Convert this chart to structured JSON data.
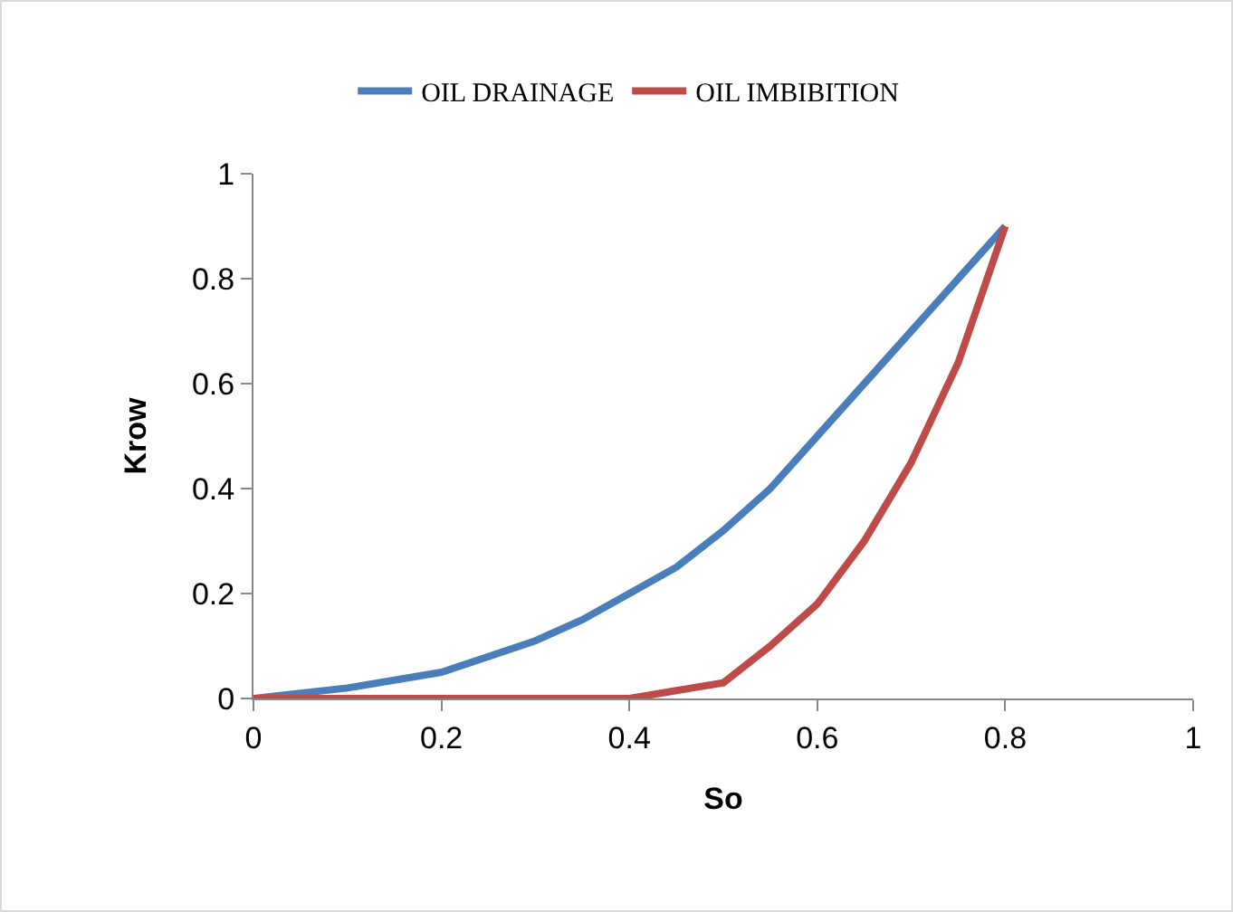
{
  "chart_data": {
    "type": "line",
    "xlabel": "So",
    "ylabel": "Krow",
    "x": [
      0,
      0.1,
      0.2,
      0.3,
      0.35,
      0.4,
      0.45,
      0.5,
      0.55,
      0.6,
      0.65,
      0.7,
      0.75,
      0.8
    ],
    "series": [
      {
        "name": "OIL DRAINAGE",
        "color": "#4a7ebb",
        "values": [
          0,
          0.02,
          0.05,
          0.11,
          0.15,
          0.2,
          0.25,
          0.32,
          0.4,
          0.5,
          0.6,
          0.7,
          0.8,
          0.9
        ]
      },
      {
        "name": "OIL IMBIBITION",
        "color": "#be4b48",
        "values": [
          0,
          0,
          0,
          0,
          0,
          0,
          0.015,
          0.03,
          0.1,
          0.18,
          0.3,
          0.45,
          0.64,
          0.9
        ]
      }
    ],
    "xlim": [
      0,
      1
    ],
    "xticks": [
      0,
      0.2,
      0.4,
      0.6,
      0.8,
      1
    ],
    "ylim": [
      0,
      1
    ],
    "yticks": [
      0,
      0.2,
      0.4,
      0.6,
      0.8,
      1
    ],
    "grid": false,
    "legend": "top",
    "marker": "none",
    "line_style": "solid"
  }
}
